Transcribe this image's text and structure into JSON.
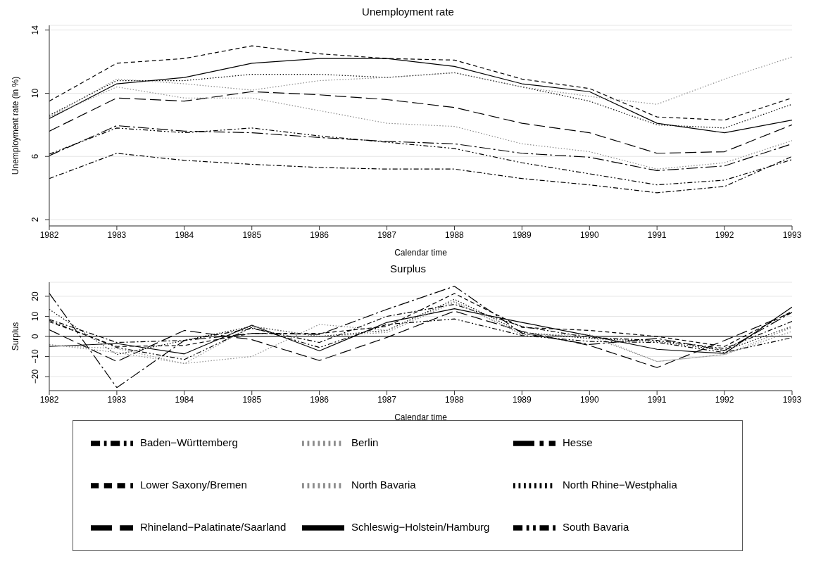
{
  "chart_data": [
    {
      "type": "line",
      "title": "Unemployment rate",
      "xlabel": "Calendar time",
      "ylabel": "Unemployment rate (in %)",
      "x": [
        1982,
        1983,
        1984,
        1985,
        1986,
        1987,
        1988,
        1989,
        1990,
        1991,
        1992,
        1993
      ],
      "xlim": [
        1982,
        1993
      ],
      "xticks": [
        1982,
        1983,
        1984,
        1985,
        1986,
        1987,
        1988,
        1989,
        1990,
        1991,
        1992,
        1993
      ],
      "ylim": [
        1.6,
        14.3
      ],
      "yticks": [
        2,
        6,
        10,
        14
      ],
      "grid": "y",
      "marker": "none",
      "series": [
        {
          "color": "#000000",
          "line_style": "solid",
          "values": [
            8.4,
            10.6,
            11.0,
            11.9,
            12.2,
            12.2,
            11.7,
            10.6,
            10.1,
            8.1,
            7.5,
            8.3
          ]
        },
        {
          "color": "#000000",
          "line_style": "dashed",
          "values": [
            9.5,
            11.9,
            12.2,
            13.0,
            12.5,
            12.2,
            12.1,
            10.9,
            10.3,
            8.5,
            8.3,
            9.7
          ]
        },
        {
          "color": "#000000",
          "line_style": "dotted",
          "values": [
            8.6,
            10.8,
            10.8,
            11.2,
            11.2,
            11.0,
            11.3,
            10.4,
            9.5,
            8.0,
            7.8,
            9.3
          ]
        },
        {
          "color": "#000000",
          "line_style": "longdashdot",
          "values": [
            6.05,
            7.95,
            7.6,
            7.5,
            7.2,
            6.95,
            6.8,
            6.2,
            5.95,
            5.1,
            5.4,
            6.8
          ]
        },
        {
          "color": "#000000",
          "line_style": "longdash",
          "values": [
            7.6,
            9.7,
            9.5,
            10.1,
            9.9,
            9.6,
            9.1,
            8.1,
            7.5,
            6.2,
            6.3,
            8.0
          ]
        },
        {
          "color": "#000000",
          "line_style": "dashdot",
          "values": [
            4.6,
            6.2,
            5.75,
            5.5,
            5.3,
            5.2,
            5.2,
            4.6,
            4.2,
            3.7,
            4.1,
            6.0
          ]
        },
        {
          "color": "#8c8c8c",
          "line_style": "dotted",
          "values": [
            8.5,
            10.4,
            9.7,
            9.7,
            8.9,
            8.1,
            7.9,
            6.8,
            6.3,
            5.2,
            5.6,
            7.0
          ]
        },
        {
          "color": "#000000",
          "line_style": "dashdotdot",
          "values": [
            6.15,
            7.8,
            7.5,
            7.8,
            7.3,
            6.9,
            6.5,
            5.6,
            4.9,
            4.2,
            4.5,
            5.8
          ]
        },
        {
          "color": "#8c8c8c",
          "line_style": "dotted",
          "values": [
            8.5,
            10.9,
            10.6,
            10.2,
            10.8,
            11.0,
            11.3,
            10.4,
            9.8,
            9.3,
            10.9,
            12.3
          ]
        }
      ]
    },
    {
      "type": "line",
      "title": "Surplus",
      "xlabel": "Calendar time",
      "ylabel": "Surplus",
      "x": [
        1982,
        1983,
        1984,
        1985,
        1986,
        1987,
        1988,
        1989,
        1990,
        1991,
        1992,
        1993
      ],
      "xlim": [
        1982,
        1993
      ],
      "xticks": [
        1982,
        1983,
        1984,
        1985,
        1986,
        1987,
        1988,
        1989,
        1990,
        1991,
        1992,
        1993
      ],
      "ylim": [
        -27,
        27
      ],
      "yticks": [
        {
          "value": -20,
          "label": "−20"
        },
        {
          "value": -10,
          "label": "−10"
        },
        0,
        10,
        20
      ],
      "grid": "y",
      "marker": "none",
      "legend": "bottom",
      "ref_lines": [
        {
          "axis": "y",
          "value": 0,
          "color": "#555555"
        }
      ],
      "series": [
        {
          "name": "Schleswig−Holstein/Hamburg",
          "color": "#000000",
          "line_style": "solid",
          "values": [
            -5,
            -3.5,
            -8.7,
            5.6,
            -7.2,
            7,
            13.8,
            7,
            0.4,
            -6.4,
            -8.5,
            14.6
          ]
        },
        {
          "name": "Lower Saxony/Bremen",
          "color": "#000000",
          "line_style": "dashed",
          "values": [
            7.3,
            -5,
            -4.5,
            1.5,
            1.5,
            5,
            21.4,
            4.5,
            3,
            0,
            -5,
            12.5
          ]
        },
        {
          "name": "North Rhine−Westphalia",
          "color": "#000000",
          "line_style": "dotted",
          "values": [
            13.5,
            -9,
            -2,
            5,
            0,
            3,
            18.5,
            2,
            -1,
            -2.5,
            -7,
            5
          ]
        },
        {
          "name": "Hesse",
          "color": "#000000",
          "line_style": "longdashdot",
          "values": [
            21.5,
            -25.5,
            -2,
            1.5,
            1,
            13.5,
            25,
            1.6,
            -4,
            -1,
            -7,
            12
          ]
        },
        {
          "name": "Rhineland−Palatinate/Saarland",
          "color": "#000000",
          "line_style": "longdash",
          "values": [
            3.3,
            -12.5,
            3,
            -1.6,
            -12,
            -0.5,
            12.6,
            2.5,
            -4.5,
            -15.5,
            -2,
            12
          ]
        },
        {
          "name": "Baden−Württemberg",
          "color": "#000000",
          "line_style": "dashdot",
          "values": [
            8.5,
            -3,
            -2,
            4,
            -3,
            10,
            16,
            5,
            -0.5,
            -2,
            -6,
            7.5
          ]
        },
        {
          "name": "North Bavaria",
          "color": "#8c8c8c",
          "line_style": "dotted",
          "values": [
            -4,
            -8,
            -13.5,
            5,
            0,
            2,
            17,
            1,
            0,
            -12.5,
            -9,
            2.5
          ]
        },
        {
          "name": "South Bavaria",
          "color": "#000000",
          "line_style": "dashdotdot",
          "values": [
            8,
            -5.5,
            -11.5,
            4.5,
            -5.5,
            6,
            8.7,
            0.5,
            -2.5,
            -3,
            -8,
            -0.6
          ]
        },
        {
          "name": "Berlin",
          "color": "#8c8c8c",
          "line_style": "dotted",
          "values": [
            -4.5,
            -6,
            -13.5,
            -10,
            6,
            3,
            17.5,
            1,
            1,
            -12.5,
            -9,
            4.5
          ]
        }
      ]
    }
  ]
}
